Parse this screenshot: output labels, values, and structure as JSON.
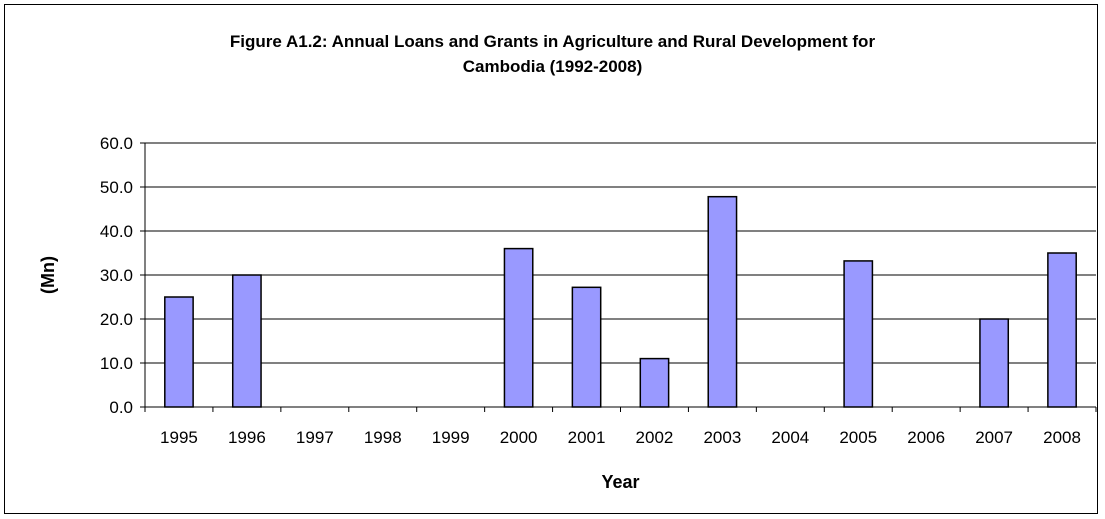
{
  "chart_data": {
    "type": "bar",
    "title_line1": "Figure A1.2: Annual Loans and Grants in Agriculture and Rural Development for",
    "title_line2": "Cambodia (1992-2008)",
    "xlabel": "Year",
    "ylabel": "(Mn)",
    "categories": [
      "1995",
      "1996",
      "1997",
      "1998",
      "1999",
      "2000",
      "2001",
      "2002",
      "2003",
      "2004",
      "2005",
      "2006",
      "2007",
      "2008"
    ],
    "values": [
      25.0,
      30.0,
      0,
      0,
      0,
      36.0,
      27.2,
      11.0,
      47.8,
      0,
      33.2,
      0,
      20.0,
      35.0
    ],
    "ylim": [
      0,
      60
    ],
    "yticks": [
      "0.0",
      "10.0",
      "20.0",
      "30.0",
      "40.0",
      "50.0",
      "60.0"
    ],
    "grid": true,
    "legend": "none",
    "bar_color": "#9999ff",
    "bar_stroke": "#000000"
  }
}
